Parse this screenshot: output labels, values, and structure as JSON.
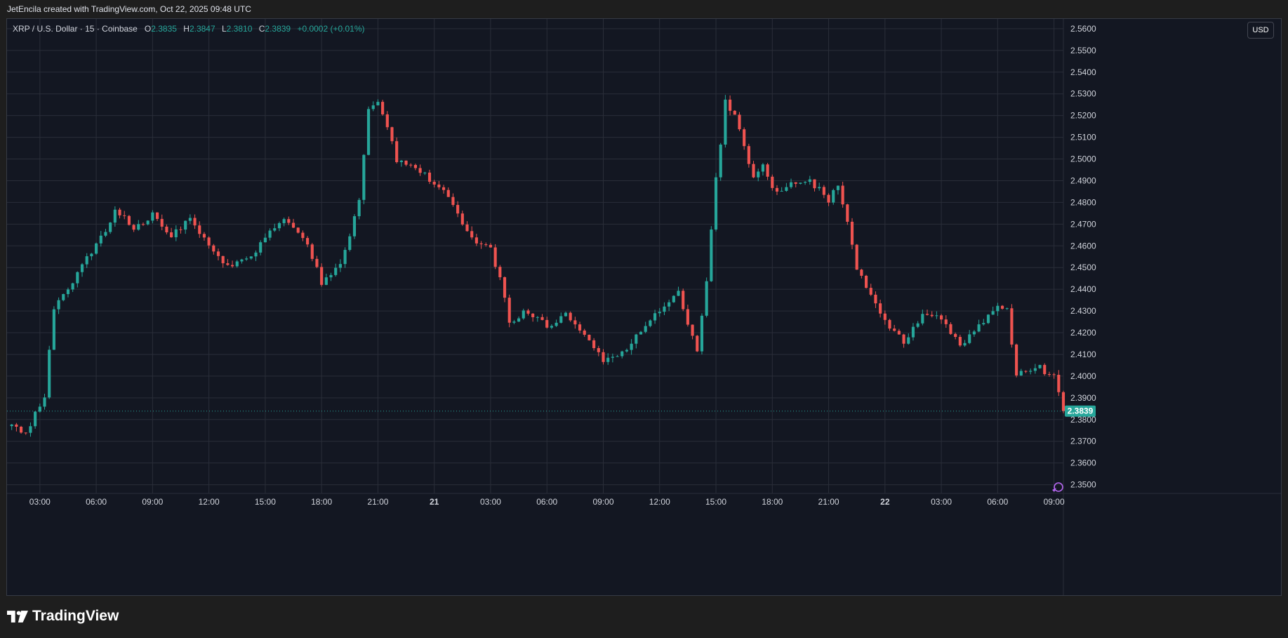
{
  "header": {
    "attribution": "JetEncila created with TradingView.com, Oct 22, 2025 09:48 UTC"
  },
  "legend": {
    "symbol": "XRP / U.S. Dollar · 15 · Coinbase",
    "open_label": "O",
    "open_value": "2.3835",
    "high_label": "H",
    "high_value": "2.3847",
    "low_label": "L",
    "low_value": "2.3810",
    "close_label": "C",
    "close_value": "2.3839",
    "change": "+0.0002 (+0.01%)"
  },
  "currency_button": "USD",
  "brand": {
    "name": "TradingView",
    "logo_icon": "tradingview-logo-icon"
  },
  "colors": {
    "up": "#26a69a",
    "down": "#ef5350",
    "background": "#131722",
    "grid": "#2a2e39",
    "last_price": "#26a69a"
  },
  "chart_data": {
    "type": "candlestick",
    "interval_minutes": 15,
    "symbol": "XRP / U.S. Dollar",
    "exchange": "Coinbase",
    "yaxis": {
      "ticks": [
        "2.3500",
        "2.3600",
        "2.3700",
        "2.3800",
        "2.3900",
        "2.4000",
        "2.4100",
        "2.4200",
        "2.4300",
        "2.4400",
        "2.4500",
        "2.4600",
        "2.4700",
        "2.4800",
        "2.4900",
        "2.5000",
        "2.5100",
        "2.5200",
        "2.5300",
        "2.5400",
        "2.5500",
        "2.5600"
      ],
      "range": [
        2.346,
        2.5645
      ]
    },
    "xaxis": {
      "ticks": [
        {
          "label": "03:00",
          "t": 0
        },
        {
          "label": "06:00",
          "t": 180
        },
        {
          "label": "09:00",
          "t": 360
        },
        {
          "label": "12:00",
          "t": 540
        },
        {
          "label": "15:00",
          "t": 720
        },
        {
          "label": "18:00",
          "t": 900
        },
        {
          "label": "21:00",
          "t": 1080
        },
        {
          "label": "21",
          "t": 1260,
          "bold": true
        },
        {
          "label": "03:00",
          "t": 1440
        },
        {
          "label": "06:00",
          "t": 1620
        },
        {
          "label": "09:00",
          "t": 1800
        },
        {
          "label": "12:00",
          "t": 1980
        },
        {
          "label": "15:00",
          "t": 2160
        },
        {
          "label": "18:00",
          "t": 2340
        },
        {
          "label": "21:00",
          "t": 2520
        },
        {
          "label": "22",
          "t": 2700,
          "bold": true
        },
        {
          "label": "03:00",
          "t": 2880
        },
        {
          "label": "06:00",
          "t": 3060
        },
        {
          "label": "09:00",
          "t": 3240
        }
      ],
      "t_range": [
        -105,
        3270
      ]
    },
    "last_price": "2.3839",
    "close_path": [
      [
        -90,
        2.3765
      ],
      [
        -45,
        2.374
      ],
      [
        0,
        2.387
      ],
      [
        15,
        2.391
      ],
      [
        45,
        2.43
      ],
      [
        90,
        2.441
      ],
      [
        180,
        2.46
      ],
      [
        240,
        2.476
      ],
      [
        300,
        2.468
      ],
      [
        360,
        2.474
      ],
      [
        420,
        2.464
      ],
      [
        480,
        2.472
      ],
      [
        540,
        2.46
      ],
      [
        600,
        2.451
      ],
      [
        660,
        2.453
      ],
      [
        720,
        2.463
      ],
      [
        780,
        2.474
      ],
      [
        840,
        2.465
      ],
      [
        900,
        2.443
      ],
      [
        960,
        2.45
      ],
      [
        1020,
        2.48
      ],
      [
        1050,
        2.523
      ],
      [
        1080,
        2.528
      ],
      [
        1110,
        2.514
      ],
      [
        1140,
        2.499
      ],
      [
        1200,
        2.495
      ],
      [
        1260,
        2.489
      ],
      [
        1320,
        2.479
      ],
      [
        1380,
        2.463
      ],
      [
        1440,
        2.459
      ],
      [
        1470,
        2.445
      ],
      [
        1500,
        2.425
      ],
      [
        1560,
        2.43
      ],
      [
        1620,
        2.423
      ],
      [
        1680,
        2.429
      ],
      [
        1740,
        2.42
      ],
      [
        1800,
        2.408
      ],
      [
        1860,
        2.41
      ],
      [
        1920,
        2.42
      ],
      [
        1980,
        2.43
      ],
      [
        2040,
        2.438
      ],
      [
        2100,
        2.412
      ],
      [
        2130,
        2.442
      ],
      [
        2160,
        2.49
      ],
      [
        2190,
        2.526
      ],
      [
        2220,
        2.521
      ],
      [
        2250,
        2.505
      ],
      [
        2280,
        2.491
      ],
      [
        2310,
        2.498
      ],
      [
        2340,
        2.485
      ],
      [
        2400,
        2.488
      ],
      [
        2460,
        2.491
      ],
      [
        2520,
        2.48
      ],
      [
        2550,
        2.489
      ],
      [
        2580,
        2.47
      ],
      [
        2610,
        2.45
      ],
      [
        2670,
        2.434
      ],
      [
        2700,
        2.425
      ],
      [
        2760,
        2.415
      ],
      [
        2820,
        2.427
      ],
      [
        2880,
        2.426
      ],
      [
        2940,
        2.414
      ],
      [
        3000,
        2.424
      ],
      [
        3060,
        2.433
      ],
      [
        3090,
        2.43
      ],
      [
        3120,
        2.402
      ],
      [
        3180,
        2.405
      ],
      [
        3240,
        2.4
      ],
      [
        3270,
        2.3839
      ]
    ]
  }
}
